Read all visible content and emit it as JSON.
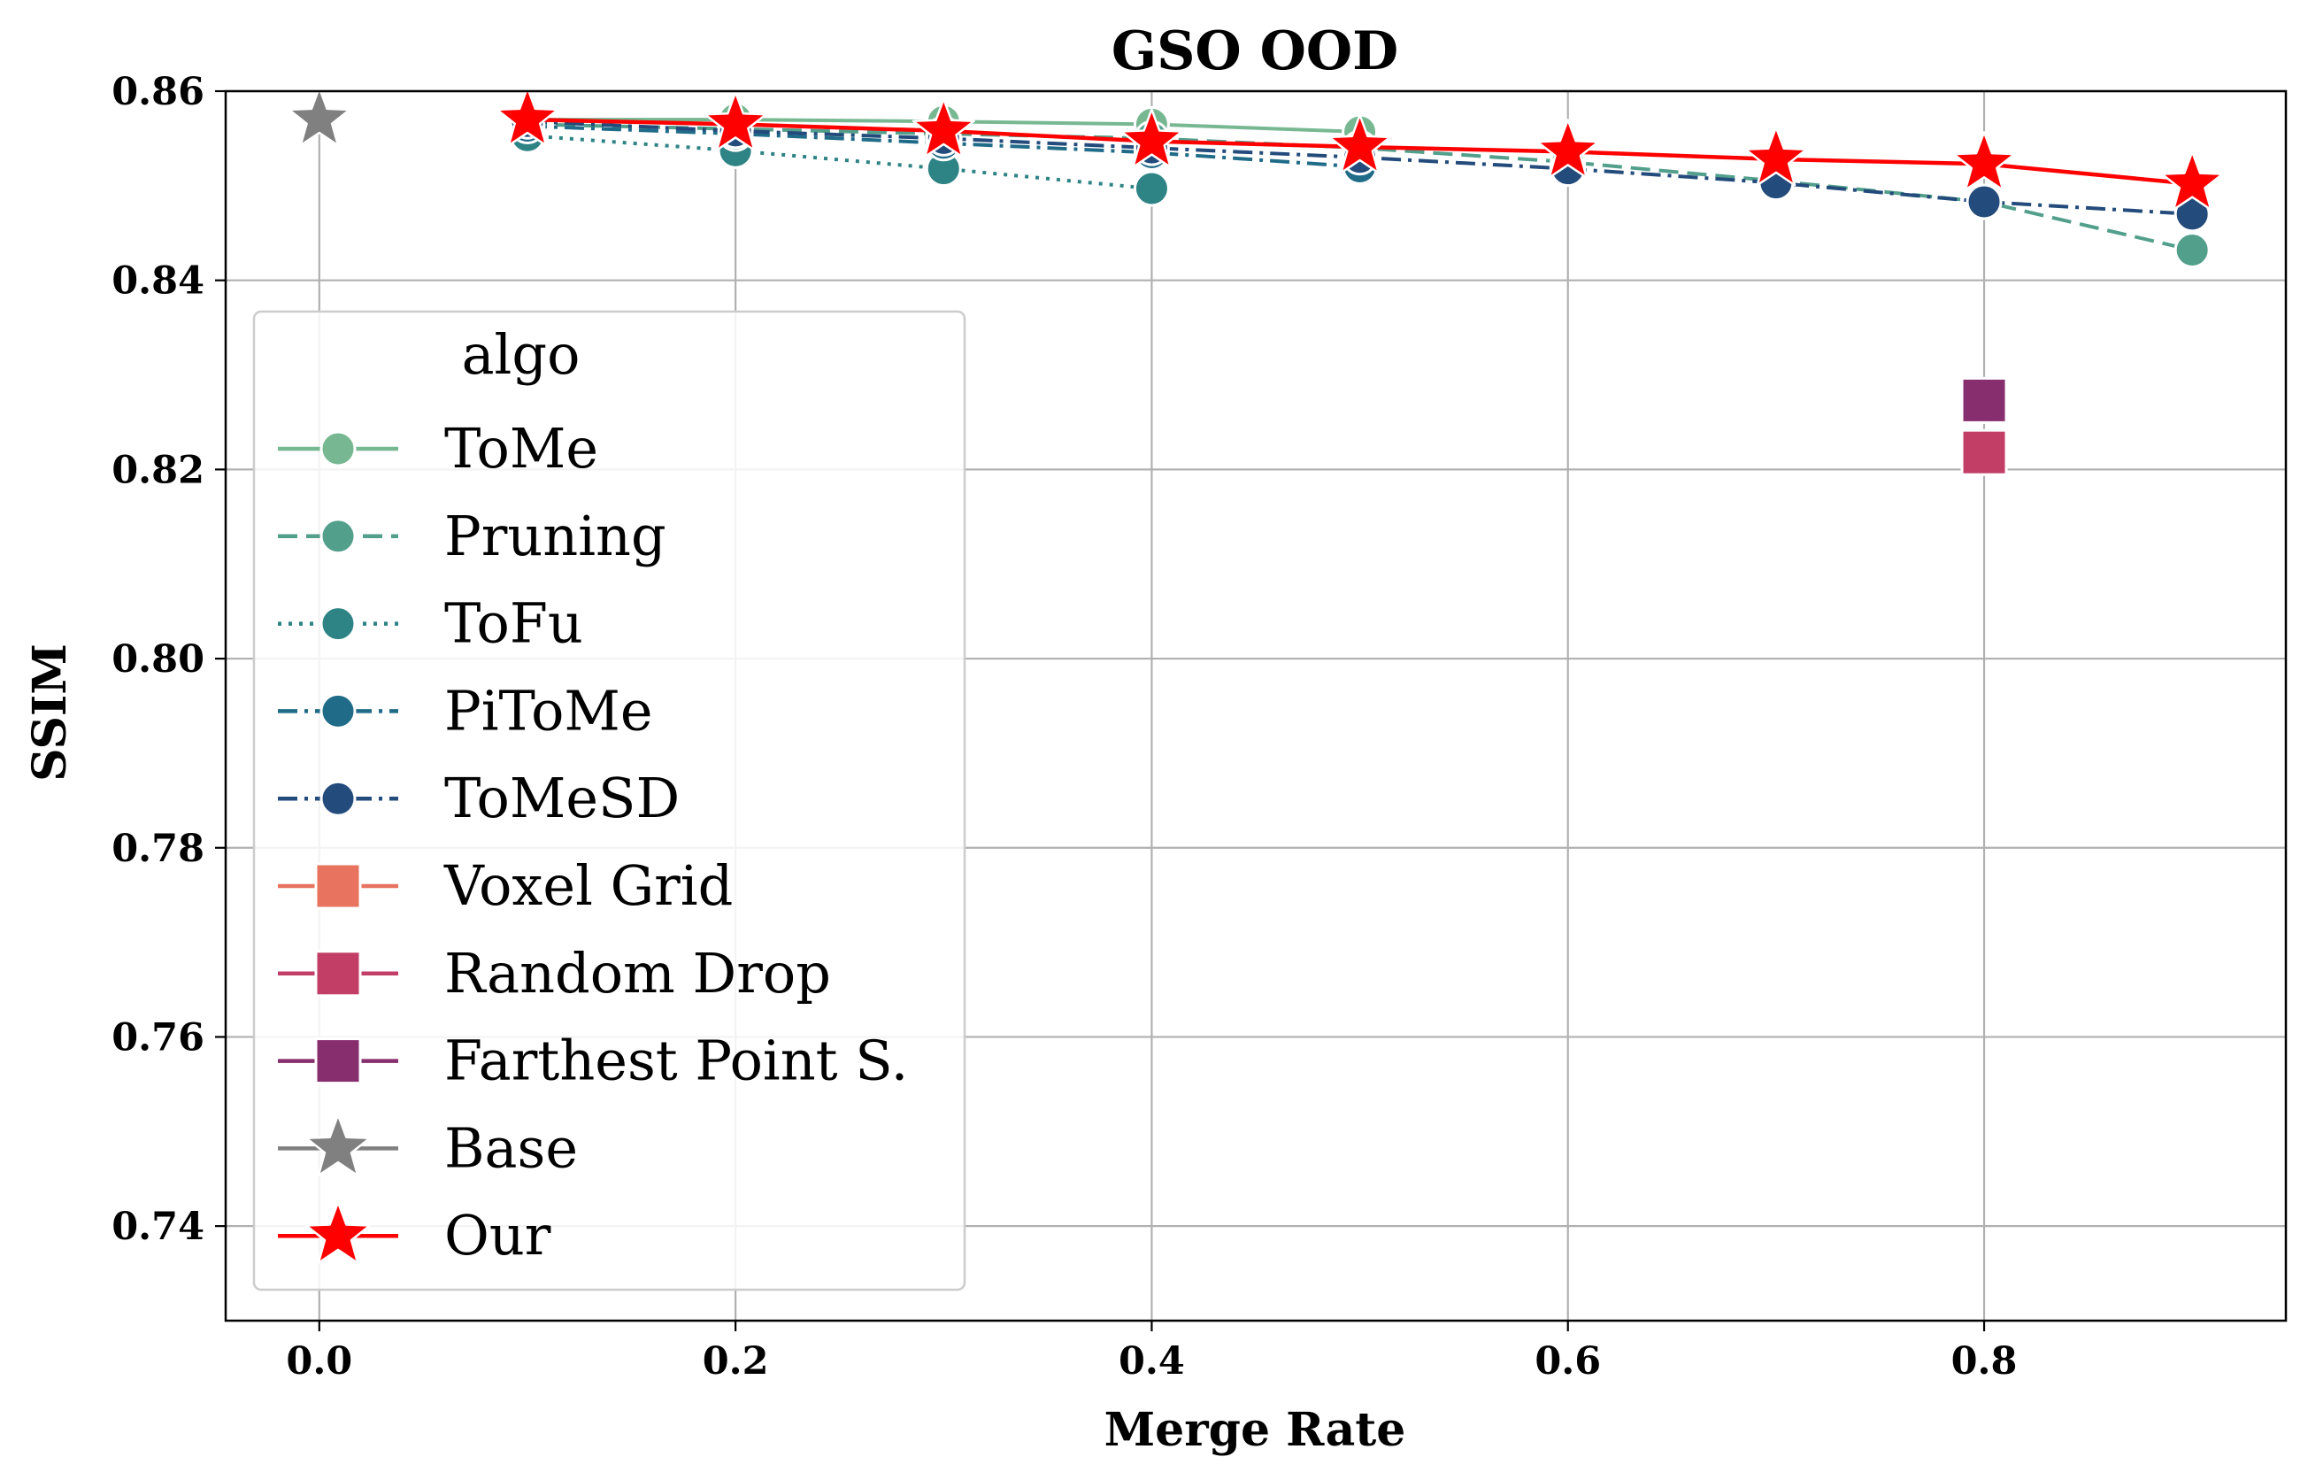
{
  "chart_data": {
    "type": "line",
    "title": "GSO OOD",
    "xlabel": "Merge Rate",
    "ylabel": "SSIM",
    "xlim": [
      -0.045,
      0.945
    ],
    "ylim": [
      0.73,
      0.86
    ],
    "xticks": [
      0.0,
      0.2,
      0.4,
      0.6,
      0.8
    ],
    "xtick_labels": [
      "0.0",
      "0.2",
      "0.4",
      "0.6",
      "0.8"
    ],
    "yticks": [
      0.74,
      0.76,
      0.78,
      0.8,
      0.82,
      0.84,
      0.86
    ],
    "ytick_labels": [
      "0.74",
      "0.76",
      "0.78",
      "0.80",
      "0.82",
      "0.84",
      "0.86"
    ],
    "grid": true,
    "legend": {
      "title": "algo",
      "position": "center-left"
    },
    "series": [
      {
        "name": "ToMe",
        "color": "#77b892",
        "marker": "circle",
        "dash": "solid",
        "x": [
          0.1,
          0.2,
          0.3,
          0.4,
          0.5
        ],
        "y": [
          0.857,
          0.857,
          0.8568,
          0.8565,
          0.8557
        ]
      },
      {
        "name": "Pruning",
        "color": "#529f8b",
        "marker": "circle",
        "dash": "dashed",
        "x": [
          0.1,
          0.2,
          0.3,
          0.4,
          0.5,
          0.6,
          0.7,
          0.8,
          0.9
        ],
        "y": [
          0.8565,
          0.856,
          0.8555,
          0.855,
          0.854,
          0.8525,
          0.8505,
          0.8483,
          0.8432
        ]
      },
      {
        "name": "ToFu",
        "color": "#2e8385",
        "marker": "circle",
        "dash": "dotted",
        "x": [
          0.1,
          0.2,
          0.3,
          0.4
        ],
        "y": [
          0.8553,
          0.8537,
          0.8518,
          0.8497
        ]
      },
      {
        "name": "PiToMe",
        "color": "#1f6b88",
        "marker": "circle",
        "dash": "dashdot",
        "x": [
          0.1,
          0.2,
          0.3,
          0.4,
          0.5
        ],
        "y": [
          0.8563,
          0.8555,
          0.8545,
          0.8535,
          0.852
        ]
      },
      {
        "name": "ToMeSD",
        "color": "#234b7b",
        "marker": "circle",
        "dash": "dashdot",
        "x": [
          0.1,
          0.2,
          0.3,
          0.4,
          0.5,
          0.6,
          0.7,
          0.8,
          0.9
        ],
        "y": [
          0.8568,
          0.8558,
          0.855,
          0.854,
          0.853,
          0.8518,
          0.8503,
          0.8483,
          0.847
        ]
      },
      {
        "name": "Voxel Grid",
        "color": "#e8735f",
        "marker": "square",
        "dash": "solid",
        "x": [],
        "y": []
      },
      {
        "name": "Random Drop",
        "color": "#c23e67",
        "marker": "square",
        "dash": "solid",
        "x": [
          0.8
        ],
        "y": [
          0.8218
        ]
      },
      {
        "name": "Farthest Point S.",
        "color": "#872e6f",
        "marker": "square",
        "dash": "solid",
        "x": [
          0.8
        ],
        "y": [
          0.8273
        ]
      },
      {
        "name": "Base",
        "color": "#808080",
        "marker": "star",
        "dash": "solid",
        "x": [
          0.0
        ],
        "y": [
          0.857
        ]
      },
      {
        "name": "Our",
        "color": "#ff0000",
        "marker": "star",
        "dash": "solid",
        "x": [
          0.1,
          0.2,
          0.3,
          0.4,
          0.5,
          0.6,
          0.7,
          0.8,
          0.9
        ],
        "y": [
          0.857,
          0.8565,
          0.8558,
          0.8547,
          0.8541,
          0.8536,
          0.8528,
          0.8523,
          0.8502
        ]
      }
    ]
  }
}
